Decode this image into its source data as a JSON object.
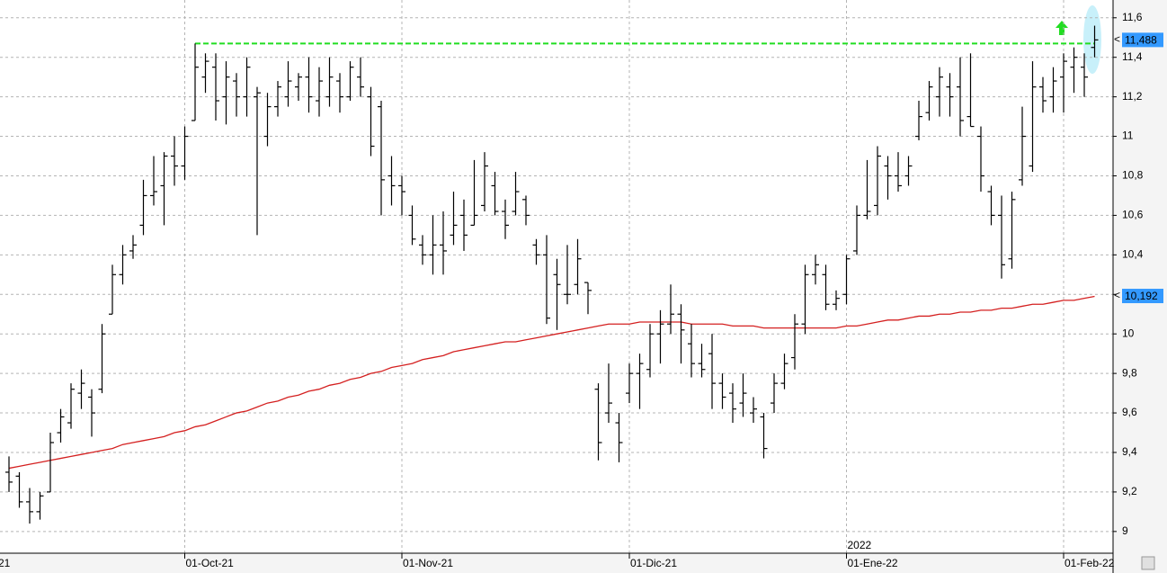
{
  "chart_data": {
    "type": "ohlc",
    "categories": [
      null,
      null,
      null,
      null,
      null,
      null,
      null,
      null,
      null,
      null,
      null,
      null,
      null,
      null,
      null,
      null,
      null,
      "01-Oct-21",
      null,
      null,
      null,
      null,
      null,
      null,
      null,
      null,
      null,
      null,
      null,
      null,
      null,
      null,
      null,
      null,
      null,
      null,
      null,
      null,
      "01-Nov-21",
      null,
      null,
      null,
      null,
      null,
      null,
      null,
      null,
      null,
      null,
      null,
      null,
      null,
      null,
      null,
      null,
      null,
      null,
      null,
      null,
      null,
      "01-Dic-21",
      null,
      null,
      null,
      null,
      null,
      null,
      null,
      null,
      null,
      null,
      null,
      null,
      null,
      null,
      null,
      null,
      null,
      null,
      null,
      null,
      "01-Ene-22",
      null,
      null,
      null,
      null,
      null,
      null,
      null,
      null,
      null,
      null,
      null,
      null,
      null,
      null,
      null,
      null,
      null,
      null,
      null,
      null,
      "01-Feb-22",
      null,
      null,
      null
    ],
    "year_label": "2022",
    "clipped_label": "21",
    "open": [
      9.3,
      9.28,
      9.15,
      9.1,
      9.2,
      9.5,
      9.55,
      9.7,
      9.68,
      9.72,
      10.1,
      10.3,
      10.42,
      10.55,
      10.7,
      10.75,
      10.9,
      10.85,
      11.08,
      11.3,
      11.35,
      11.2,
      11.28,
      11.2,
      11.2,
      11.0,
      11.15,
      11.2,
      11.25,
      11.3,
      11.18,
      11.2,
      11.28,
      11.2,
      11.3,
      11.2,
      11.15,
      10.8,
      10.75,
      10.6,
      10.45,
      10.4,
      10.45,
      10.5,
      10.6,
      10.55,
      10.65,
      10.75,
      10.62,
      10.62,
      10.68,
      10.45,
      10.4,
      10.3,
      10.2,
      10.25,
      10.26,
      9.72,
      9.6,
      9.55,
      9.7,
      9.8,
      9.82,
      10.0,
      10.05,
      10.1,
      9.95,
      9.85,
      9.9,
      9.75,
      9.7,
      9.65,
      9.6,
      9.58,
      9.65,
      9.75,
      9.88,
      10.05,
      10.3,
      10.3,
      10.15,
      10.2,
      10.42,
      10.6,
      10.65,
      10.85,
      10.8,
      10.8,
      11.0,
      11.12,
      11.2,
      11.25,
      11.25,
      11.1,
      11.0,
      10.72,
      10.6,
      10.38,
      10.78,
      10.85,
      11.25,
      11.2,
      11.3,
      11.35,
      11.35,
      11.45
    ],
    "high": [
      9.38,
      9.3,
      9.22,
      9.2,
      9.5,
      9.62,
      9.75,
      9.82,
      9.72,
      10.05,
      10.35,
      10.45,
      10.5,
      10.78,
      10.9,
      10.92,
      11.0,
      11.05,
      11.47,
      11.42,
      11.42,
      11.38,
      11.32,
      11.4,
      11.25,
      11.22,
      11.28,
      11.38,
      11.32,
      11.4,
      11.35,
      11.4,
      11.32,
      11.38,
      11.4,
      11.25,
      11.18,
      10.9,
      10.8,
      10.65,
      10.5,
      10.6,
      10.62,
      10.72,
      10.68,
      10.88,
      10.92,
      10.82,
      10.68,
      10.82,
      10.7,
      10.48,
      10.5,
      10.38,
      10.45,
      10.48,
      10.26,
      9.75,
      9.85,
      9.6,
      9.85,
      9.9,
      10.05,
      10.12,
      10.25,
      10.15,
      10.05,
      9.95,
      10.0,
      9.8,
      9.75,
      9.8,
      9.68,
      9.6,
      9.8,
      9.9,
      10.1,
      10.35,
      10.4,
      10.35,
      10.22,
      10.4,
      10.65,
      10.88,
      10.95,
      10.9,
      10.92,
      10.9,
      11.18,
      11.28,
      11.35,
      11.32,
      11.4,
      11.42,
      11.05,
      10.75,
      10.7,
      10.72,
      11.15,
      11.38,
      11.3,
      11.35,
      11.42,
      11.45,
      11.42,
      11.56
    ],
    "low": [
      9.2,
      9.12,
      9.04,
      9.06,
      9.2,
      9.45,
      9.52,
      9.62,
      9.48,
      9.7,
      10.1,
      10.25,
      10.38,
      10.5,
      10.65,
      10.55,
      10.75,
      10.78,
      11.08,
      11.22,
      11.08,
      11.06,
      11.1,
      11.1,
      10.5,
      10.95,
      11.1,
      11.15,
      11.18,
      11.12,
      11.1,
      11.15,
      11.12,
      11.18,
      11.2,
      10.9,
      10.6,
      10.65,
      10.6,
      10.45,
      10.35,
      10.3,
      10.3,
      10.45,
      10.42,
      10.55,
      10.62,
      10.6,
      10.48,
      10.6,
      10.55,
      10.35,
      10.05,
      10.02,
      10.15,
      10.2,
      10.1,
      9.36,
      9.55,
      9.35,
      9.65,
      9.62,
      9.78,
      9.85,
      10.0,
      9.85,
      9.78,
      9.78,
      9.62,
      9.62,
      9.55,
      9.58,
      9.55,
      9.37,
      9.6,
      9.72,
      9.82,
      10.0,
      10.25,
      10.12,
      10.12,
      10.15,
      10.4,
      10.58,
      10.6,
      10.68,
      10.72,
      10.75,
      10.98,
      11.08,
      11.1,
      11.1,
      11.0,
      11.05,
      10.72,
      10.55,
      10.28,
      10.33,
      10.75,
      10.82,
      11.12,
      11.12,
      11.12,
      11.22,
      11.2,
      11.4
    ],
    "close": [
      9.25,
      9.15,
      9.1,
      9.18,
      9.45,
      9.58,
      9.72,
      9.75,
      9.6,
      10.0,
      10.3,
      10.4,
      10.45,
      10.7,
      10.72,
      10.9,
      10.85,
      11.0,
      11.35,
      11.38,
      11.18,
      11.3,
      11.2,
      11.35,
      11.22,
      11.15,
      11.25,
      11.28,
      11.3,
      11.2,
      11.28,
      11.3,
      11.2,
      11.35,
      11.25,
      10.95,
      10.78,
      10.75,
      10.72,
      10.48,
      10.4,
      10.45,
      10.42,
      10.55,
      10.5,
      10.6,
      10.85,
      10.62,
      10.55,
      10.72,
      10.6,
      10.4,
      10.08,
      10.25,
      10.2,
      10.38,
      10.22,
      9.45,
      9.65,
      9.45,
      9.8,
      9.85,
      10.0,
      10.05,
      10.1,
      10.02,
      9.85,
      9.82,
      9.75,
      9.68,
      9.62,
      9.7,
      9.62,
      9.42,
      9.75,
      9.85,
      10.05,
      10.3,
      10.35,
      10.15,
      10.18,
      10.38,
      10.6,
      10.62,
      10.9,
      10.8,
      10.75,
      10.85,
      11.1,
      11.25,
      11.3,
      11.2,
      11.08,
      11.05,
      10.8,
      10.6,
      10.35,
      10.68,
      11.0,
      11.25,
      11.18,
      11.28,
      11.38,
      11.4,
      11.3,
      11.488
    ],
    "bar_color": "#000000",
    "moving_average": {
      "color": "#d42020",
      "values": [
        9.32,
        9.33,
        9.34,
        9.35,
        9.36,
        9.37,
        9.38,
        9.39,
        9.4,
        9.41,
        9.42,
        9.44,
        9.45,
        9.46,
        9.47,
        9.48,
        9.5,
        9.51,
        9.53,
        9.54,
        9.56,
        9.58,
        9.6,
        9.61,
        9.63,
        9.65,
        9.66,
        9.68,
        9.69,
        9.71,
        9.72,
        9.74,
        9.75,
        9.77,
        9.78,
        9.8,
        9.81,
        9.83,
        9.84,
        9.85,
        9.87,
        9.88,
        9.89,
        9.91,
        9.92,
        9.93,
        9.94,
        9.95,
        9.96,
        9.96,
        9.97,
        9.98,
        9.99,
        10.0,
        10.01,
        10.02,
        10.03,
        10.04,
        10.05,
        10.05,
        10.05,
        10.06,
        10.06,
        10.06,
        10.06,
        10.06,
        10.05,
        10.05,
        10.05,
        10.05,
        10.04,
        10.04,
        10.04,
        10.03,
        10.03,
        10.03,
        10.03,
        10.03,
        10.03,
        10.03,
        10.03,
        10.04,
        10.04,
        10.05,
        10.06,
        10.07,
        10.07,
        10.08,
        10.09,
        10.09,
        10.1,
        10.1,
        10.11,
        10.11,
        10.12,
        10.12,
        10.13,
        10.13,
        10.14,
        10.15,
        10.15,
        10.16,
        10.17,
        10.17,
        10.18,
        10.19
      ]
    },
    "resistance": {
      "value": 11.47,
      "color": "#22dd22"
    },
    "price_tags": [
      {
        "value": 11.488,
        "label": "11,488"
      },
      {
        "value": 10.192,
        "label": "10,192"
      }
    ],
    "ylim": [
      8.89,
      11.69
    ],
    "yticks": [
      9,
      {
        "value": 9.2,
        "label": "9,2"
      },
      {
        "value": 9.4,
        "label": "9,4"
      },
      {
        "value": 9.6,
        "label": "9,6"
      },
      {
        "value": 9.8,
        "label": "9,8"
      },
      10,
      {
        "value": 10.2,
        "label": "10,2"
      },
      {
        "value": 10.4,
        "label": "10,4"
      },
      {
        "value": 10.6,
        "label": "10,6"
      },
      {
        "value": 10.8,
        "label": "10,8"
      },
      11,
      {
        "value": 11.2,
        "label": "11,2"
      },
      {
        "value": 11.4,
        "label": "11,4"
      },
      {
        "value": 11.6,
        "label": "11,6"
      }
    ],
    "grid": true
  }
}
